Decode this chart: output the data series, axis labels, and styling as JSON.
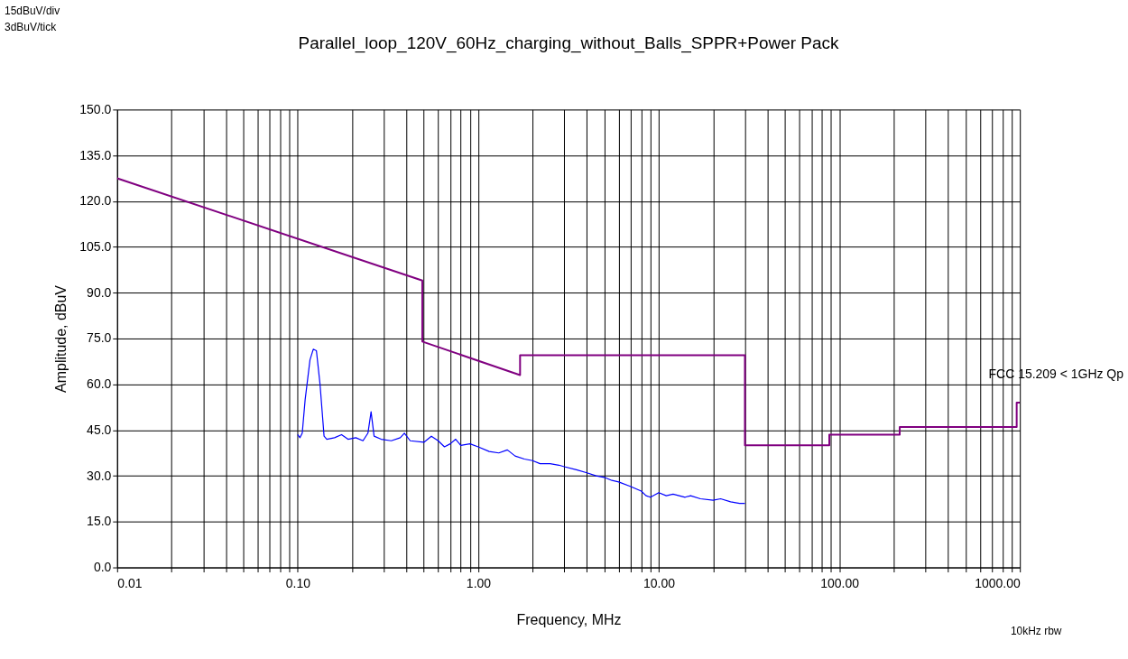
{
  "chart_data": {
    "type": "line",
    "title": "Parallel_loop_120V_60Hz_charging_without_Balls_SPPR+Power Pack",
    "xlabel": "Frequency, MHz",
    "ylabel": "Amplitude, dBuV",
    "annotations": [
      "15dBuV/div",
      "3dBuV/tick",
      "10kHz rbw"
    ],
    "log": "x",
    "grid": true,
    "marker": "none",
    "line_style": "solid",
    "xlim": [
      0.01,
      1000
    ],
    "ylim": [
      0,
      150
    ],
    "xticks": [
      {
        "value": 0.01,
        "label": "0.01"
      },
      {
        "value": 0.02,
        "label": null
      },
      {
        "value": 0.03,
        "label": null
      },
      {
        "value": 0.04,
        "label": null
      },
      {
        "value": 0.05,
        "label": null
      },
      {
        "value": 0.06,
        "label": null
      },
      {
        "value": 0.07,
        "label": null
      },
      {
        "value": 0.08,
        "label": null
      },
      {
        "value": 0.09,
        "label": null
      },
      {
        "value": 0.1,
        "label": "0.10"
      },
      {
        "value": 0.2,
        "label": null
      },
      {
        "value": 0.3,
        "label": null
      },
      {
        "value": 0.4,
        "label": null
      },
      {
        "value": 0.5,
        "label": null
      },
      {
        "value": 0.6,
        "label": null
      },
      {
        "value": 0.7,
        "label": null
      },
      {
        "value": 0.8,
        "label": null
      },
      {
        "value": 0.9,
        "label": null
      },
      {
        "value": 1,
        "label": "1.00"
      },
      {
        "value": 2,
        "label": null
      },
      {
        "value": 3,
        "label": null
      },
      {
        "value": 4,
        "label": null
      },
      {
        "value": 5,
        "label": null
      },
      {
        "value": 6,
        "label": null
      },
      {
        "value": 7,
        "label": null
      },
      {
        "value": 8,
        "label": null
      },
      {
        "value": 9,
        "label": null
      },
      {
        "value": 10,
        "label": "10.00"
      },
      {
        "value": 20,
        "label": null
      },
      {
        "value": 30,
        "label": null
      },
      {
        "value": 40,
        "label": null
      },
      {
        "value": 50,
        "label": null
      },
      {
        "value": 60,
        "label": null
      },
      {
        "value": 70,
        "label": null
      },
      {
        "value": 80,
        "label": null
      },
      {
        "value": 90,
        "label": null
      },
      {
        "value": 100,
        "label": "100.00"
      },
      {
        "value": 200,
        "label": null
      },
      {
        "value": 300,
        "label": null
      },
      {
        "value": 400,
        "label": null
      },
      {
        "value": 500,
        "label": null
      },
      {
        "value": 600,
        "label": null
      },
      {
        "value": 700,
        "label": null
      },
      {
        "value": 800,
        "label": null
      },
      {
        "value": 900,
        "label": null
      },
      {
        "value": 1000,
        "label": "1000.00"
      }
    ],
    "yticks": [
      {
        "value": 0,
        "label": "0.0"
      },
      {
        "value": 15,
        "label": "15.0"
      },
      {
        "value": 30,
        "label": "30.0"
      },
      {
        "value": 45,
        "label": "45.0"
      },
      {
        "value": 60,
        "label": "60.0"
      },
      {
        "value": 75,
        "label": "75.0"
      },
      {
        "value": 90,
        "label": "90.0"
      },
      {
        "value": 105,
        "label": "105.0"
      },
      {
        "value": 120,
        "label": "120.0"
      },
      {
        "value": 135,
        "label": "135.0"
      },
      {
        "value": 150,
        "label": "150.0"
      }
    ],
    "series": [
      {
        "color": "#0000ff",
        "x": [
          0.1,
          0.103,
          0.106,
          0.11,
          0.117,
          0.122,
          0.127,
          0.133,
          0.14,
          0.145,
          0.16,
          0.175,
          0.19,
          0.21,
          0.23,
          0.245,
          0.255,
          0.265,
          0.29,
          0.33,
          0.37,
          0.39,
          0.42,
          0.5,
          0.55,
          0.6,
          0.65,
          0.7,
          0.75,
          0.8,
          0.9,
          1.0,
          1.15,
          1.3,
          1.45,
          1.6,
          1.8,
          2.0,
          2.2,
          2.5,
          2.8,
          3.0,
          3.5,
          4.0,
          4.5,
          5.0,
          5.5,
          6.0,
          7.0,
          8.0,
          8.5,
          9.0,
          10.0,
          11.0,
          12.0,
          14.0,
          15.0,
          17.0,
          20.0,
          22.0,
          25.0,
          28.0,
          30.0
        ],
        "values": [
          43.5,
          42.5,
          44,
          55,
          68,
          71.5,
          71,
          60,
          43,
          42,
          42.5,
          43.5,
          42,
          42.5,
          41.5,
          44,
          51,
          43,
          42,
          41.5,
          42.5,
          44,
          41.5,
          41,
          43,
          41.5,
          39.5,
          40.5,
          42,
          40,
          40.5,
          39.5,
          38,
          37.5,
          38.5,
          36.5,
          35.5,
          35,
          34,
          34,
          33.5,
          33,
          32,
          31,
          30,
          29.5,
          28.5,
          28,
          26.5,
          25,
          23.5,
          23,
          24.5,
          23.5,
          24,
          23,
          23.5,
          22.5,
          22,
          22.5,
          21.5,
          21,
          21
        ]
      },
      {
        "name": "FCC 15.209 < 1GHz Qp",
        "color": "#800080",
        "x": [
          0.01,
          0.49,
          0.49,
          1.705,
          1.705,
          30,
          30,
          88,
          88,
          216,
          216,
          960,
          960,
          1000
        ],
        "values": [
          127.5,
          94,
          74,
          63,
          69.5,
          69.5,
          40,
          40,
          43.5,
          43.5,
          46,
          46,
          54,
          54
        ]
      }
    ]
  }
}
